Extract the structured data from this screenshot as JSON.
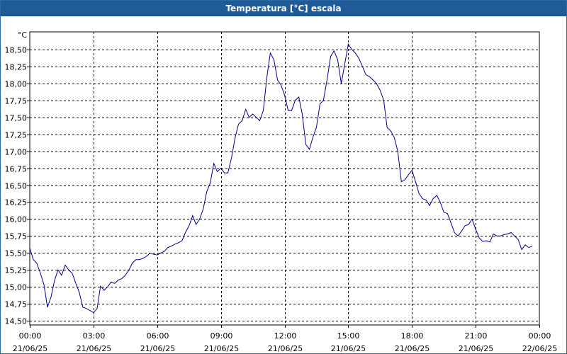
{
  "window": {
    "title": "Temperatura [°C] escala"
  },
  "chart_data": {
    "type": "line",
    "title": "Temperatura [°C] escala",
    "ylabel": "°C",
    "xlabel": "",
    "grid": true,
    "ylim": [
      14.4,
      18.75
    ],
    "ytick_labels": [
      "14,50",
      "14,75",
      "15,00",
      "15,25",
      "15,50",
      "15,75",
      "16,00",
      "16,25",
      "16,50",
      "16,75",
      "17,00",
      "17,25",
      "17,50",
      "17,75",
      "18,00",
      "18,25",
      "18,50"
    ],
    "ytick_values": [
      14.5,
      14.75,
      15.0,
      15.25,
      15.5,
      15.75,
      16.0,
      16.25,
      16.5,
      16.75,
      17.0,
      17.25,
      17.5,
      17.75,
      18.0,
      18.25,
      18.5
    ],
    "xticks": [
      {
        "time": "00:00",
        "date": "21/06/25",
        "hours": 0
      },
      {
        "time": "03:00",
        "date": "21/06/25",
        "hours": 3
      },
      {
        "time": "06:00",
        "date": "21/06/25",
        "hours": 6
      },
      {
        "time": "09:00",
        "date": "21/06/25",
        "hours": 9
      },
      {
        "time": "12:00",
        "date": "21/06/25",
        "hours": 12
      },
      {
        "time": "15:00",
        "date": "21/06/25",
        "hours": 15
      },
      {
        "time": "18:00",
        "date": "21/06/25",
        "hours": 18
      },
      {
        "time": "21:00",
        "date": "21/06/25",
        "hours": 21
      },
      {
        "time": "00:00",
        "date": "22/06/25",
        "hours": 24
      }
    ],
    "xlim_hours": [
      0,
      24
    ],
    "series": [
      {
        "color": "#00008b",
        "points": [
          [
            0.0,
            15.57
          ],
          [
            0.17,
            15.4
          ],
          [
            0.33,
            15.35
          ],
          [
            0.5,
            15.2
          ],
          [
            0.67,
            15.03
          ],
          [
            0.83,
            14.7
          ],
          [
            1.0,
            14.85
          ],
          [
            1.17,
            15.1
          ],
          [
            1.33,
            15.25
          ],
          [
            1.5,
            15.17
          ],
          [
            1.67,
            15.32
          ],
          [
            1.83,
            15.25
          ],
          [
            2.0,
            15.2
          ],
          [
            2.17,
            15.05
          ],
          [
            2.33,
            14.92
          ],
          [
            2.5,
            14.7
          ],
          [
            2.67,
            14.68
          ],
          [
            2.83,
            14.65
          ],
          [
            3.0,
            14.62
          ],
          [
            3.17,
            14.68
          ],
          [
            3.33,
            15.01
          ],
          [
            3.5,
            14.95
          ],
          [
            3.67,
            15.0
          ],
          [
            3.83,
            15.07
          ],
          [
            4.0,
            15.05
          ],
          [
            4.17,
            15.1
          ],
          [
            4.33,
            15.12
          ],
          [
            4.5,
            15.17
          ],
          [
            4.67,
            15.25
          ],
          [
            4.83,
            15.35
          ],
          [
            5.0,
            15.4
          ],
          [
            5.17,
            15.4
          ],
          [
            5.33,
            15.42
          ],
          [
            5.5,
            15.45
          ],
          [
            5.67,
            15.5
          ],
          [
            5.83,
            15.48
          ],
          [
            6.0,
            15.47
          ],
          [
            6.17,
            15.5
          ],
          [
            6.33,
            15.52
          ],
          [
            6.5,
            15.58
          ],
          [
            6.67,
            15.6
          ],
          [
            6.83,
            15.63
          ],
          [
            7.0,
            15.65
          ],
          [
            7.17,
            15.68
          ],
          [
            7.33,
            15.8
          ],
          [
            7.5,
            15.9
          ],
          [
            7.67,
            16.05
          ],
          [
            7.83,
            15.92
          ],
          [
            8.0,
            16.0
          ],
          [
            8.17,
            16.15
          ],
          [
            8.33,
            16.4
          ],
          [
            8.5,
            16.53
          ],
          [
            8.67,
            16.82
          ],
          [
            8.83,
            16.7
          ],
          [
            9.0,
            16.75
          ],
          [
            9.17,
            16.68
          ],
          [
            9.33,
            16.68
          ],
          [
            9.5,
            16.9
          ],
          [
            9.67,
            17.2
          ],
          [
            9.83,
            17.4
          ],
          [
            10.0,
            17.45
          ],
          [
            10.17,
            17.62
          ],
          [
            10.33,
            17.5
          ],
          [
            10.5,
            17.55
          ],
          [
            10.67,
            17.5
          ],
          [
            10.83,
            17.45
          ],
          [
            11.0,
            17.6
          ],
          [
            11.17,
            18.1
          ],
          [
            11.33,
            18.45
          ],
          [
            11.5,
            18.35
          ],
          [
            11.67,
            18.05
          ],
          [
            11.83,
            17.98
          ],
          [
            12.0,
            17.83
          ],
          [
            12.17,
            17.6
          ],
          [
            12.33,
            17.6
          ],
          [
            12.5,
            17.75
          ],
          [
            12.67,
            17.8
          ],
          [
            12.83,
            17.55
          ],
          [
            13.0,
            17.1
          ],
          [
            13.17,
            17.03
          ],
          [
            13.33,
            17.2
          ],
          [
            13.5,
            17.35
          ],
          [
            13.67,
            17.7
          ],
          [
            13.83,
            17.75
          ],
          [
            14.0,
            18.05
          ],
          [
            14.17,
            18.4
          ],
          [
            14.33,
            18.48
          ],
          [
            14.5,
            18.35
          ],
          [
            14.67,
            18.0
          ],
          [
            14.83,
            18.28
          ],
          [
            15.0,
            18.58
          ],
          [
            15.17,
            18.5
          ],
          [
            15.33,
            18.45
          ],
          [
            15.5,
            18.37
          ],
          [
            15.67,
            18.25
          ],
          [
            15.83,
            18.13
          ],
          [
            16.0,
            18.1
          ],
          [
            16.17,
            18.05
          ],
          [
            16.33,
            18.0
          ],
          [
            16.5,
            17.9
          ],
          [
            16.67,
            17.75
          ],
          [
            16.83,
            17.35
          ],
          [
            17.0,
            17.3
          ],
          [
            17.17,
            17.2
          ],
          [
            17.33,
            17.0
          ],
          [
            17.5,
            16.55
          ],
          [
            17.67,
            16.58
          ],
          [
            17.83,
            16.65
          ],
          [
            18.0,
            16.72
          ],
          [
            18.17,
            16.55
          ],
          [
            18.33,
            16.38
          ],
          [
            18.5,
            16.3
          ],
          [
            18.67,
            16.28
          ],
          [
            18.83,
            16.2
          ],
          [
            19.0,
            16.3
          ],
          [
            19.17,
            16.35
          ],
          [
            19.33,
            16.25
          ],
          [
            19.5,
            16.1
          ],
          [
            19.67,
            16.08
          ],
          [
            19.83,
            15.95
          ],
          [
            20.0,
            15.8
          ],
          [
            20.17,
            15.75
          ],
          [
            20.33,
            15.82
          ],
          [
            20.5,
            15.9
          ],
          [
            20.67,
            15.92
          ],
          [
            20.83,
            16.0
          ],
          [
            21.0,
            15.85
          ],
          [
            21.17,
            15.72
          ],
          [
            21.33,
            15.67
          ],
          [
            21.5,
            15.68
          ],
          [
            21.67,
            15.66
          ],
          [
            21.83,
            15.78
          ],
          [
            22.0,
            15.75
          ],
          [
            22.17,
            15.75
          ],
          [
            22.33,
            15.77
          ],
          [
            22.5,
            15.78
          ],
          [
            22.67,
            15.8
          ],
          [
            22.83,
            15.75
          ],
          [
            23.0,
            15.7
          ],
          [
            23.17,
            15.55
          ],
          [
            23.33,
            15.62
          ],
          [
            23.5,
            15.58
          ],
          [
            23.67,
            15.6
          ]
        ]
      }
    ]
  }
}
